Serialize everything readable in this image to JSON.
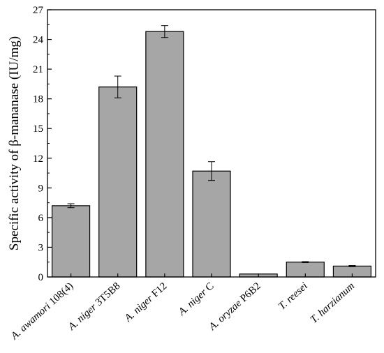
{
  "chart_data": {
    "type": "bar",
    "ylabel": "Specific activity of β-mananase (IU/mg)",
    "xlabel": "",
    "ylim": [
      0,
      27
    ],
    "yticks": [
      0,
      3,
      6,
      9,
      12,
      15,
      18,
      21,
      24,
      27
    ],
    "grid": false,
    "bar_color": "#a6a6a6",
    "categories": [
      "A. awamori 108(4)",
      "A. niger 3T5B8",
      "A. niger F12",
      "A. niger C",
      "A. oryzae P6B2",
      "T. reesei",
      "T. harzianum"
    ],
    "values": [
      7.2,
      19.2,
      24.8,
      10.7,
      0.3,
      1.5,
      1.1
    ],
    "errors": [
      0.2,
      1.1,
      0.6,
      0.95,
      0.0,
      0.05,
      0.06
    ]
  }
}
